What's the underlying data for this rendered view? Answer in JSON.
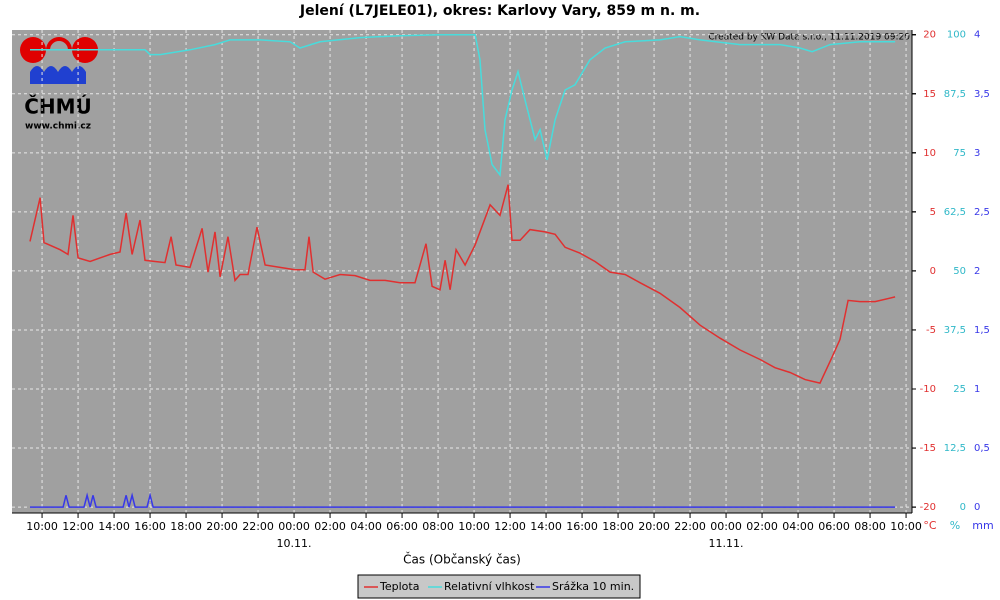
{
  "chart_data": {
    "type": "line",
    "title": "Jelení (L7JELE01), okres: Karlovy Vary, 859 m n. m.",
    "credit": "Created by KW Data s.r.o., 11.11.2019 09:20",
    "logo_text": "ČHMÚ",
    "logo_url": "www.chmi.cz",
    "x_label": "Čas (Občanský čas)",
    "xlim": [
      -15.67,
      34.33
    ],
    "xticks": [
      {
        "value": -14,
        "label": "10:00"
      },
      {
        "value": -12,
        "label": "12:00"
      },
      {
        "value": -10,
        "label": "14:00"
      },
      {
        "value": -8,
        "label": "16:00"
      },
      {
        "value": -6,
        "label": "18:00"
      },
      {
        "value": -4,
        "label": "20:00"
      },
      {
        "value": -2,
        "label": "22:00"
      },
      {
        "value": 0,
        "label": "00:00"
      },
      {
        "value": 2,
        "label": "02:00"
      },
      {
        "value": 4,
        "label": "04:00"
      },
      {
        "value": 6,
        "label": "06:00"
      },
      {
        "value": 8,
        "label": "08:00"
      },
      {
        "value": 10,
        "label": "10:00"
      },
      {
        "value": 12,
        "label": "12:00"
      },
      {
        "value": 14,
        "label": "14:00"
      },
      {
        "value": 16,
        "label": "16:00"
      },
      {
        "value": 18,
        "label": "18:00"
      },
      {
        "value": 20,
        "label": "20:00"
      },
      {
        "value": 22,
        "label": "22:00"
      },
      {
        "value": 24,
        "label": "00:00"
      },
      {
        "value": 26,
        "label": "02:00"
      },
      {
        "value": 28,
        "label": "04:00"
      },
      {
        "value": 30,
        "label": "06:00"
      },
      {
        "value": 32,
        "label": "08:00"
      },
      {
        "value": 34,
        "label": "10:00"
      }
    ],
    "x_date_labels": [
      {
        "value": 0,
        "label": "10.11."
      },
      {
        "value": 24,
        "label": "11.11."
      }
    ],
    "ylim": [
      -20.5,
      20.4
    ],
    "yticks": [
      -20,
      -15,
      -10,
      -5,
      0,
      5,
      10,
      15,
      20
    ],
    "y_unit": "°C",
    "y2lim": [
      -1.25,
      101
    ],
    "y2ticks": [
      0,
      {
        "value": 12.5,
        "label": "12,5"
      },
      25,
      {
        "value": 37.5,
        "label": "37,5"
      },
      50,
      {
        "value": 62.5,
        "label": "62,5"
      },
      75,
      {
        "value": 87.5,
        "label": "87,5"
      },
      100
    ],
    "y2_unit": "%",
    "y3lim": [
      -0.05,
      4.04
    ],
    "y3ticks": [
      0,
      {
        "value": 0.5,
        "label": "0,5"
      },
      1,
      {
        "value": 1.5,
        "label": "1,5"
      },
      2,
      {
        "value": 2.5,
        "label": "2,5"
      },
      3,
      {
        "value": 3.5,
        "label": "3,5"
      },
      4
    ],
    "y3_unit": "mm",
    "grid": true,
    "series": [
      {
        "name": "Teplota",
        "color": "#e03030",
        "axis": "y",
        "x": [
          -14.67,
          -14.11,
          -13.89,
          -13,
          -12.56,
          -12.28,
          -12,
          -11.33,
          -10.78,
          -10.22,
          -9.67,
          -9.33,
          -9,
          -8.56,
          -8.28,
          -7.72,
          -7.17,
          -6.83,
          -6.56,
          -5.78,
          -5.11,
          -4.78,
          -4.39,
          -4.11,
          -3.67,
          -3.28,
          -3,
          -2.56,
          -2.06,
          -1.61,
          -0.78,
          0.06,
          0.61,
          0.83,
          1.06,
          1.72,
          2.56,
          3.39,
          4.22,
          5.06,
          5.89,
          6.72,
          7.33,
          7.67,
          8.11,
          8.39,
          8.67,
          9,
          9.5,
          10.06,
          10.89,
          11.44,
          11.89,
          12.11,
          12.56,
          13.11,
          13.94,
          14.5,
          15.06,
          15.89,
          16.72,
          17.56,
          18.39,
          19.22,
          20.33,
          21.44,
          22.56,
          23.67,
          24.78,
          25.89,
          26.72,
          27.56,
          28.39,
          29.22,
          29.89,
          30.33,
          30.78,
          31.44,
          32.28,
          33.39
        ],
        "values": [
          2.5,
          6.2,
          2.4,
          1.8,
          1.4,
          4.7,
          1.1,
          0.8,
          1.1,
          1.4,
          1.6,
          4.9,
          1.4,
          4.3,
          0.9,
          0.8,
          0.7,
          2.9,
          0.5,
          0.3,
          3.6,
          -0.1,
          3.3,
          -0.5,
          2.9,
          -0.8,
          -0.3,
          -0.3,
          3.7,
          0.5,
          0.3,
          0.1,
          0.1,
          2.9,
          -0.1,
          -0.7,
          -0.3,
          -0.4,
          -0.8,
          -0.8,
          -1.0,
          -1.0,
          2.3,
          -1.3,
          -1.6,
          0.9,
          -1.6,
          1.8,
          0.5,
          2.2,
          5.6,
          4.7,
          7.3,
          2.6,
          2.6,
          3.5,
          3.3,
          3.1,
          2.0,
          1.5,
          0.8,
          -0.1,
          -0.3,
          -1.0,
          -1.9,
          -3.1,
          -4.6,
          -5.7,
          -6.7,
          -7.5,
          -8.2,
          -8.6,
          -9.2,
          -9.5,
          -7.3,
          -5.8,
          -2.5,
          -2.6,
          -2.6,
          -2.2
        ]
      },
      {
        "name": "Relativní vlhkost",
        "color": "#48dcdc",
        "axis": "y2",
        "x": [
          -14.67,
          -10.78,
          -8.28,
          -8,
          -7.44,
          -5.78,
          -4.39,
          -3.56,
          -1.89,
          -0.22,
          0.33,
          1.44,
          3.67,
          5.89,
          8.11,
          10.06,
          10.33,
          10.61,
          11,
          11.44,
          11.72,
          12.11,
          12.44,
          12.83,
          13.39,
          13.67,
          14.06,
          14.5,
          15.06,
          15.61,
          16.44,
          17.28,
          18.39,
          20.33,
          21.44,
          22.56,
          24.78,
          27,
          28.11,
          28.78,
          29.78,
          31.44,
          33.39
        ],
        "values": [
          96.8,
          96.8,
          96.8,
          95.8,
          95.8,
          96.8,
          97.9,
          98.9,
          98.9,
          98.5,
          97.2,
          98.5,
          99.4,
          99.8,
          100,
          100,
          94.7,
          79.9,
          72.5,
          70.3,
          82,
          88.3,
          92.2,
          86.2,
          77.8,
          79.9,
          73.5,
          82,
          88.3,
          89.4,
          94.7,
          97.2,
          98.5,
          98.9,
          99.6,
          98.9,
          97.9,
          97.9,
          97.2,
          96.4,
          97.9,
          98.5,
          98.5
        ]
      },
      {
        "name": "Srážka 10 min.",
        "color": "#3838e8",
        "axis": "y3",
        "x": [
          -14.67,
          -12.83,
          -12.67,
          -12.5,
          -11.67,
          -11.5,
          -11.33,
          -11.17,
          -11,
          -9.5,
          -9.33,
          -9.17,
          -9,
          -8.83,
          -8.17,
          -8,
          -7.83,
          33.39
        ],
        "values": [
          0,
          0,
          0.1,
          0,
          0,
          0.1,
          0,
          0.1,
          0,
          0,
          0.1,
          0,
          0.1,
          0,
          0,
          0.1,
          0,
          0
        ]
      }
    ]
  }
}
